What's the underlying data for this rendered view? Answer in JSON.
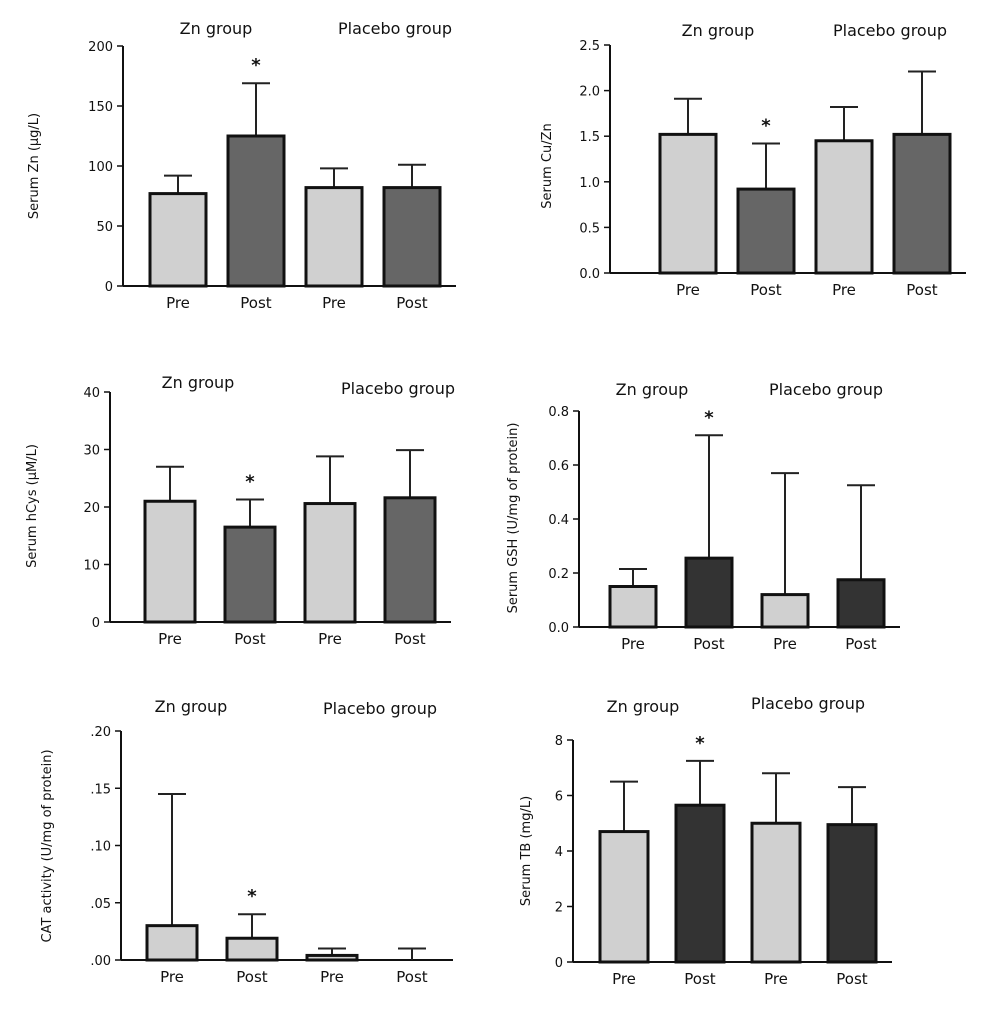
{
  "colors": {
    "pre": "#d0d0d0",
    "post_mid": "#666666",
    "post_dark": "#333333",
    "axis": "#111111"
  },
  "chart_data": [
    {
      "type": "bar",
      "group_labels": [
        "Zn group",
        "Placebo group"
      ],
      "categories": [
        "Pre",
        "Post",
        "Pre",
        "Post"
      ],
      "values": [
        77,
        125,
        82,
        82
      ],
      "errors": [
        15,
        44,
        16,
        19
      ],
      "significant": [
        false,
        true,
        false,
        false
      ],
      "bar_colors": [
        "pre",
        "post_mid",
        "pre",
        "post_mid"
      ],
      "ylabel": "Serum Zn (μg/L)",
      "ylim": [
        0,
        200
      ],
      "yticks": [
        0,
        50,
        100,
        150,
        200
      ],
      "ytick_labels": [
        "0",
        "50",
        "100",
        "150",
        "200"
      ],
      "grid": false
    },
    {
      "type": "bar",
      "group_labels": [
        "Zn group",
        "Placebo group"
      ],
      "categories": [
        "Pre",
        "Post",
        "Pre",
        "Post"
      ],
      "values": [
        1.52,
        0.92,
        1.45,
        1.52
      ],
      "errors": [
        0.39,
        0.5,
        0.37,
        0.69
      ],
      "significant": [
        false,
        true,
        false,
        false
      ],
      "bar_colors": [
        "pre",
        "post_mid",
        "pre",
        "post_mid"
      ],
      "ylabel": "Serum Cu/Zn",
      "ylim": [
        0,
        2.5
      ],
      "yticks": [
        0,
        0.5,
        1.0,
        1.5,
        2.0,
        2.5
      ],
      "ytick_labels": [
        "0.0",
        "0.5",
        "1.0",
        "1.5",
        "2.0",
        "2.5"
      ],
      "grid": false
    },
    {
      "type": "bar",
      "group_labels": [
        "Zn group",
        "Placebo group"
      ],
      "categories": [
        "Pre",
        "Post",
        "Pre",
        "Post"
      ],
      "values": [
        21,
        16.5,
        20.6,
        21.6
      ],
      "errors": [
        6,
        4.8,
        8.2,
        8.3
      ],
      "significant": [
        false,
        true,
        false,
        false
      ],
      "bar_colors": [
        "pre",
        "post_mid",
        "pre",
        "post_mid"
      ],
      "ylabel": "Serum hCys (μM/L)",
      "ylim": [
        0,
        40
      ],
      "yticks": [
        0,
        10,
        20,
        30,
        40
      ],
      "ytick_labels": [
        "0",
        "10",
        "20",
        "30",
        "40"
      ],
      "grid": false
    },
    {
      "type": "bar",
      "group_labels": [
        "Zn group",
        "Placebo group"
      ],
      "categories": [
        "Pre",
        "Post",
        "Pre",
        "Post"
      ],
      "values": [
        0.15,
        0.255,
        0.12,
        0.175
      ],
      "errors": [
        0.065,
        0.455,
        0.45,
        0.35
      ],
      "significant": [
        false,
        true,
        false,
        false
      ],
      "bar_colors": [
        "pre",
        "post_dark",
        "pre",
        "post_dark"
      ],
      "ylabel": "Serum GSH (U/mg of protein)",
      "ylim": [
        0,
        0.8
      ],
      "yticks": [
        0,
        0.2,
        0.4,
        0.6,
        0.8
      ],
      "ytick_labels": [
        "0.0",
        "0.2",
        "0.4",
        "0.6",
        "0.8"
      ],
      "grid": false
    },
    {
      "type": "bar",
      "group_labels": [
        "Zn group",
        "Placebo group"
      ],
      "categories": [
        "Pre",
        "Post",
        "Pre",
        "Post"
      ],
      "values": [
        0.03,
        0.019,
        0.004,
        0
      ],
      "errors": [
        0.115,
        0.021,
        0.006,
        0.01
      ],
      "significant": [
        false,
        true,
        false,
        false
      ],
      "bar_colors": [
        "pre",
        "pre",
        "pre",
        "pre"
      ],
      "ylabel": "CAT activity (U/mg of protein)",
      "ylim": [
        0,
        0.2
      ],
      "yticks": [
        0,
        0.05,
        0.1,
        0.15,
        0.2
      ],
      "ytick_labels": [
        ".00",
        ".05",
        ".10",
        ".15",
        ".20"
      ],
      "grid": false
    },
    {
      "type": "bar",
      "group_labels": [
        "Zn group",
        "Placebo group"
      ],
      "categories": [
        "Pre",
        "Post",
        "Pre",
        "Post"
      ],
      "values": [
        4.7,
        5.65,
        5.0,
        4.95
      ],
      "errors": [
        1.8,
        1.6,
        1.8,
        1.35
      ],
      "significant": [
        false,
        true,
        false,
        false
      ],
      "bar_colors": [
        "pre",
        "post_dark",
        "pre",
        "post_dark"
      ],
      "ylabel": "Serum TB (mg/L)",
      "ylim": [
        0,
        8
      ],
      "yticks": [
        0,
        2,
        4,
        6,
        8
      ],
      "ytick_labels": [
        "0",
        "2",
        "4",
        "6",
        "8"
      ],
      "grid": false
    }
  ]
}
